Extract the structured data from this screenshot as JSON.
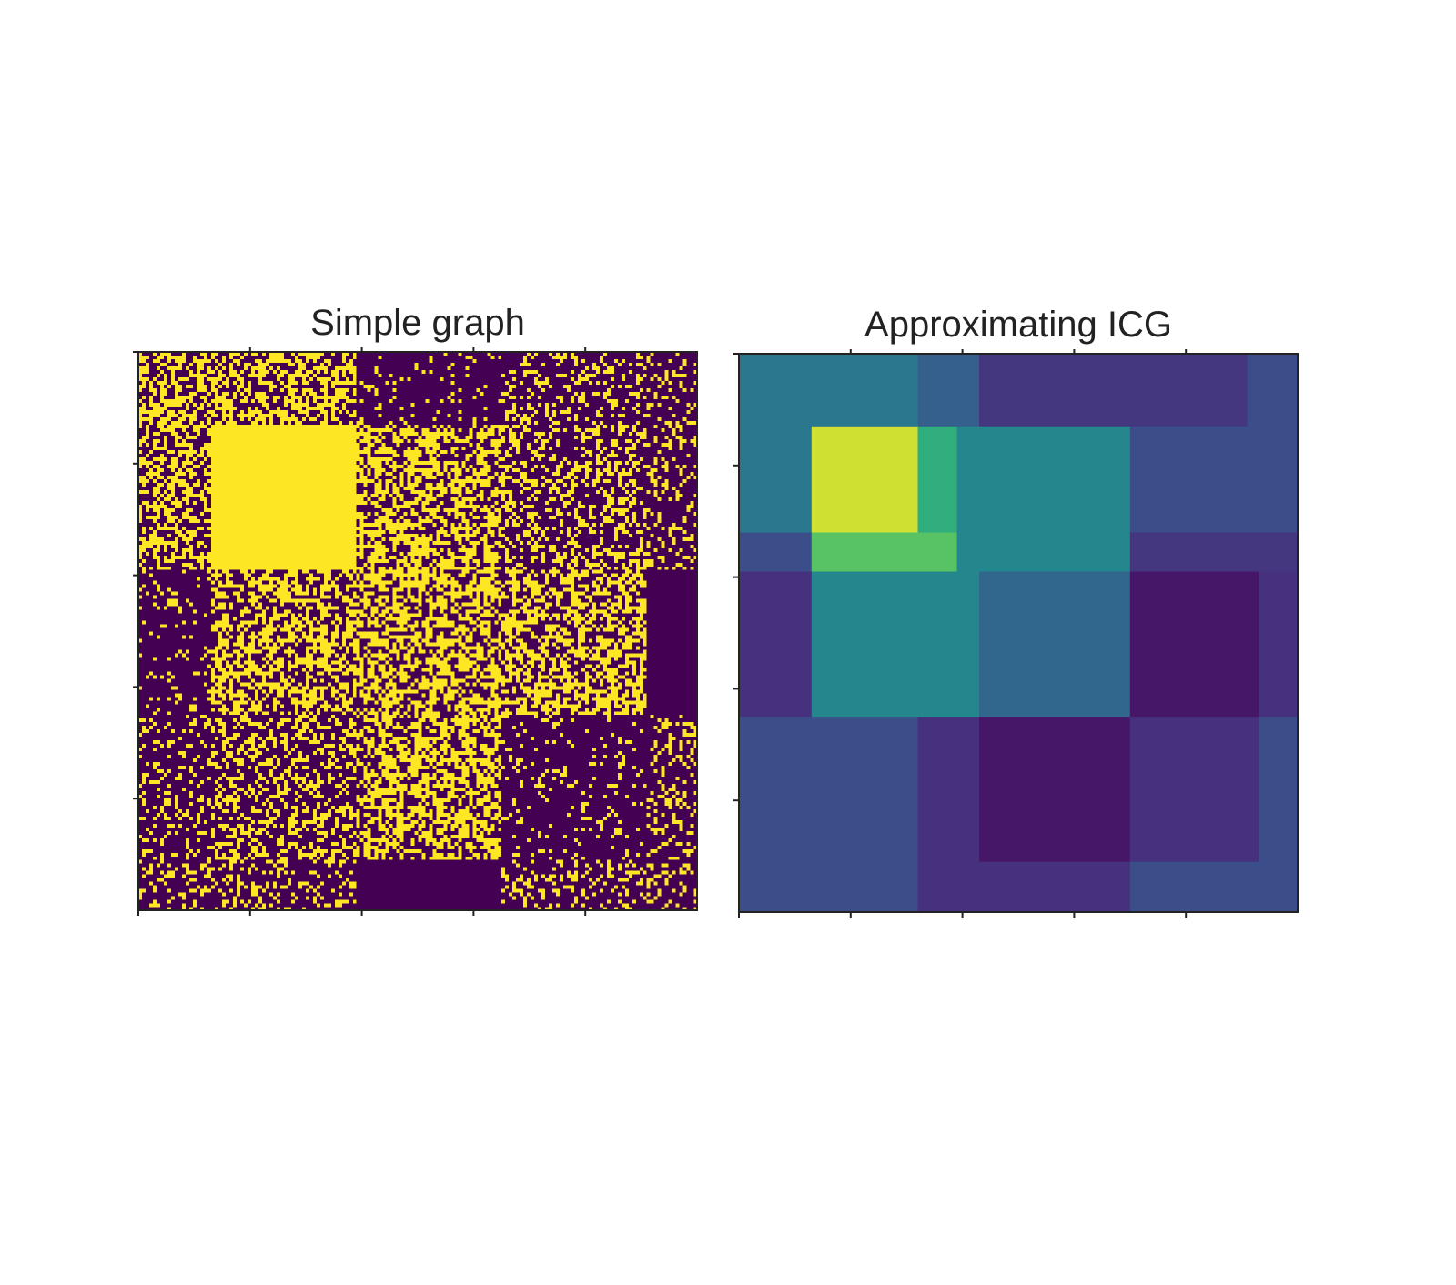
{
  "chart_data": [
    {
      "type": "heatmap",
      "title": "Simple graph",
      "colormap": "viridis",
      "value_range": [
        0,
        1
      ],
      "n_nodes": 5,
      "tick_count": 5,
      "axis_labels_visible": false,
      "legend": "none",
      "colors": {
        "low": "#440154",
        "high": "#fde725"
      },
      "block_boundaries": [
        0,
        0.13,
        0.39,
        0.65,
        0.91,
        1.0
      ],
      "cell_values": [
        [
          0.5,
          0.5,
          0.1,
          0.25,
          0.25
        ],
        [
          0.5,
          1.0,
          0.55,
          0.35,
          0.25
        ],
        [
          0.1,
          0.55,
          0.55,
          0.55,
          0.0
        ],
        [
          0.25,
          0.35,
          0.55,
          0.1,
          0.25
        ],
        [
          0.25,
          0.25,
          0.0,
          0.25,
          0.25
        ]
      ]
    },
    {
      "type": "heatmap",
      "title": "Approximating ICG",
      "colormap": "viridis",
      "value_range": [
        0,
        1
      ],
      "tick_count": 5,
      "axis_labels_visible": false,
      "legend": "none",
      "colors": {
        "low": "#440154",
        "high": "#fde725"
      },
      "block_boundaries": [
        0,
        0.13,
        0.32,
        0.39,
        0.43,
        0.65,
        0.7,
        0.91,
        0.93,
        1.0
      ],
      "cell_values": [
        [
          0.5,
          0.5,
          0.38,
          0.38,
          0.2,
          0.2,
          0.2,
          0.3,
          0.3
        ],
        [
          0.5,
          0.95,
          0.72,
          0.58,
          0.58,
          0.58,
          0.3,
          0.3,
          0.3
        ],
        [
          0.3,
          0.8,
          0.8,
          0.58,
          0.58,
          0.58,
          0.2,
          0.2,
          0.2
        ],
        [
          0.18,
          0.58,
          0.58,
          0.58,
          0.42,
          0.42,
          0.08,
          0.08,
          0.18
        ],
        [
          0.18,
          0.58,
          0.58,
          0.58,
          0.42,
          0.42,
          0.08,
          0.08,
          0.18
        ],
        [
          0.3,
          0.3,
          0.18,
          0.18,
          0.08,
          0.08,
          0.18,
          0.18,
          0.3
        ],
        [
          0.3,
          0.3,
          0.18,
          0.18,
          0.08,
          0.08,
          0.18,
          0.18,
          0.3
        ],
        [
          0.3,
          0.3,
          0.18,
          0.18,
          0.18,
          0.18,
          0.3,
          0.3,
          0.3
        ],
        [
          0.3,
          0.3,
          0.18,
          0.18,
          0.18,
          0.18,
          0.3,
          0.3,
          0.3
        ]
      ]
    }
  ]
}
